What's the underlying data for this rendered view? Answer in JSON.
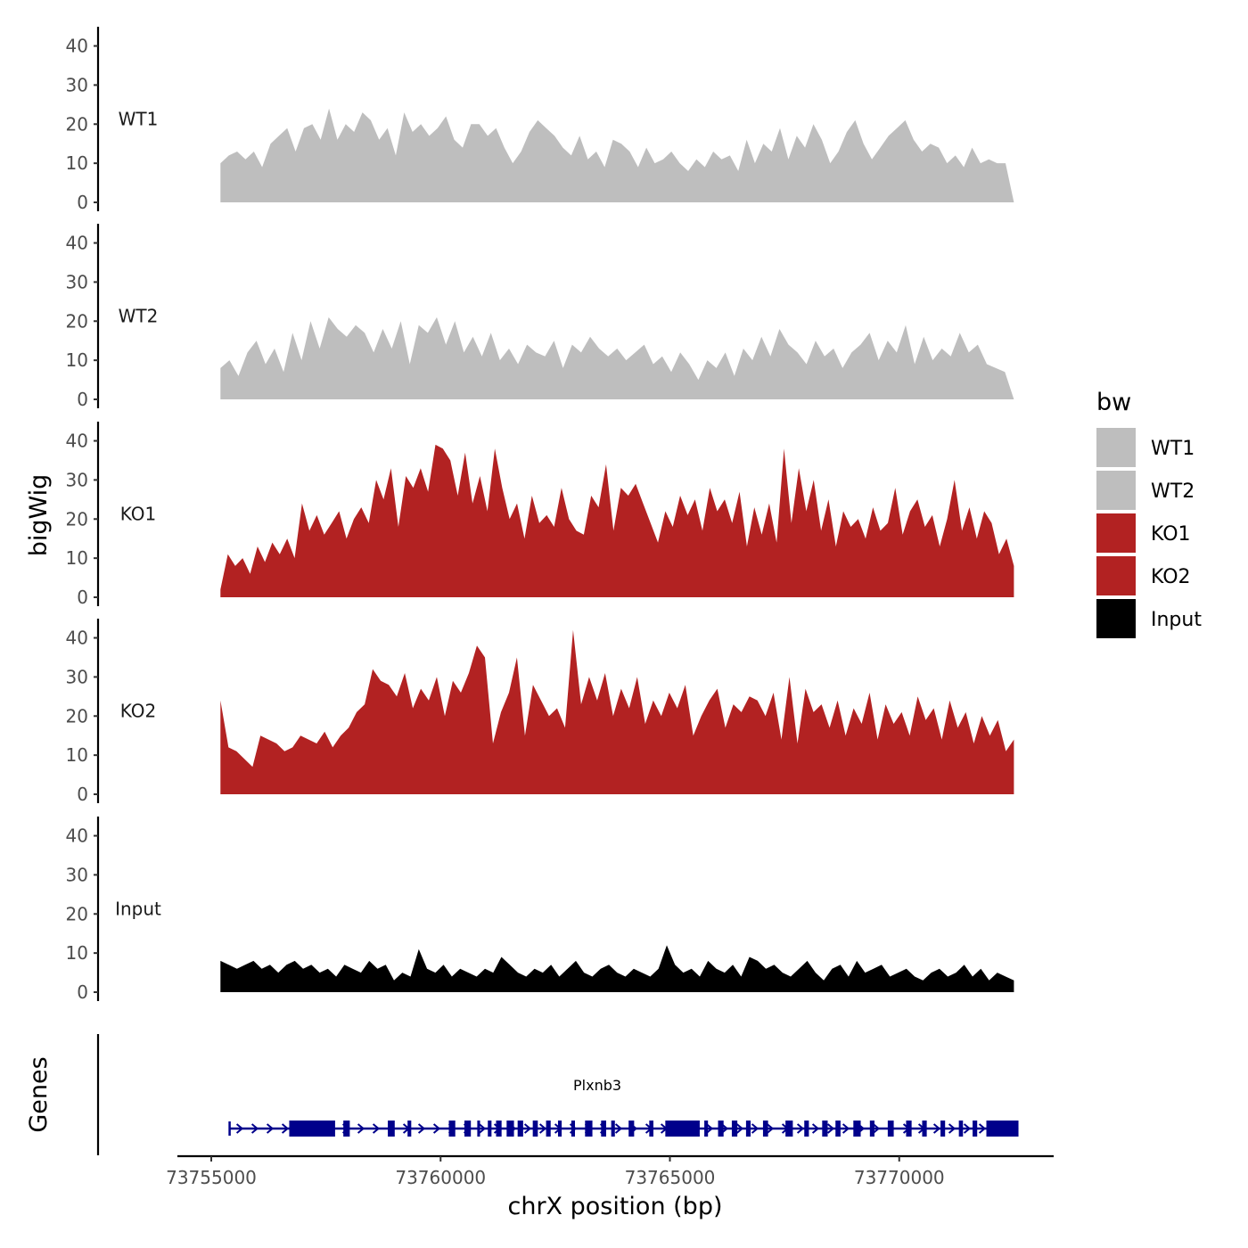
{
  "chart_data": {
    "type": "area",
    "region": "chrX",
    "xlabel": "chrX position (bp)",
    "ylabel": "bigWig",
    "genes_label": "Genes",
    "xlim": [
      73754000,
      73774000
    ],
    "x_ticks": [
      73755000,
      73760000,
      73765000,
      73770000
    ],
    "x_tick_labels": [
      "73755000",
      "73760000",
      "73765000",
      "73770000"
    ],
    "ylim": [
      0,
      44
    ],
    "y_ticks": [
      0,
      10,
      20,
      30,
      40
    ],
    "y_tick_labels": [
      "0",
      "10",
      "20",
      "30",
      "40"
    ],
    "legend": {
      "title": "bw",
      "position": "right",
      "entries": [
        {
          "label": "WT1",
          "color": "#bebebe"
        },
        {
          "label": "WT2",
          "color": "#bebebe"
        },
        {
          "label": "KO1",
          "color": "#b22222"
        },
        {
          "label": "KO2",
          "color": "#b22222"
        },
        {
          "label": "Input",
          "color": "#000000"
        }
      ]
    },
    "series": [
      {
        "name": "WT1",
        "color": "#bebebe",
        "start": 73755200,
        "end": 73772500,
        "values": [
          10,
          12,
          13,
          11,
          13,
          9,
          15,
          17,
          19,
          13,
          19,
          20,
          16,
          24,
          16,
          20,
          18,
          23,
          21,
          16,
          19,
          12,
          23,
          18,
          20,
          17,
          19,
          22,
          16,
          14,
          20,
          20,
          17,
          19,
          14,
          10,
          13,
          18,
          21,
          19,
          17,
          14,
          12,
          17,
          11,
          13,
          9,
          16,
          15,
          13,
          9,
          14,
          10,
          11,
          13,
          10,
          8,
          11,
          9,
          13,
          11,
          12,
          8,
          16,
          10,
          15,
          13,
          19,
          11,
          17,
          14,
          20,
          16,
          10,
          13,
          18,
          21,
          15,
          11,
          14,
          17,
          19,
          21,
          16,
          13,
          15,
          14,
          10,
          12,
          9,
          14,
          10,
          11,
          10,
          10,
          0
        ]
      },
      {
        "name": "WT2",
        "color": "#bebebe",
        "start": 73755200,
        "end": 73772500,
        "values": [
          8,
          10,
          6,
          12,
          15,
          9,
          13,
          7,
          17,
          10,
          20,
          13,
          21,
          18,
          16,
          19,
          17,
          12,
          18,
          13,
          20,
          9,
          19,
          17,
          21,
          14,
          20,
          12,
          16,
          11,
          17,
          10,
          13,
          9,
          14,
          12,
          11,
          15,
          8,
          14,
          12,
          16,
          13,
          11,
          13,
          10,
          12,
          14,
          9,
          11,
          7,
          12,
          9,
          5,
          10,
          8,
          12,
          6,
          13,
          10,
          16,
          11,
          18,
          14,
          12,
          9,
          15,
          11,
          13,
          8,
          12,
          14,
          17,
          10,
          15,
          12,
          19,
          9,
          16,
          10,
          13,
          11,
          17,
          12,
          14,
          9,
          8,
          7,
          0
        ]
      },
      {
        "name": "KO1",
        "color": "#b22222",
        "start": 73755200,
        "end": 73772500,
        "values": [
          2,
          11,
          8,
          10,
          6,
          13,
          9,
          14,
          11,
          15,
          10,
          24,
          17,
          21,
          16,
          19,
          22,
          15,
          20,
          23,
          19,
          30,
          25,
          33,
          18,
          31,
          28,
          33,
          27,
          39,
          38,
          35,
          26,
          37,
          24,
          31,
          22,
          38,
          28,
          20,
          24,
          15,
          26,
          19,
          21,
          18,
          28,
          20,
          17,
          16,
          26,
          23,
          34,
          17,
          28,
          26,
          29,
          24,
          19,
          14,
          22,
          18,
          26,
          21,
          25,
          17,
          28,
          22,
          25,
          19,
          27,
          13,
          23,
          16,
          24,
          14,
          38,
          19,
          33,
          22,
          30,
          17,
          25,
          13,
          22,
          18,
          20,
          15,
          23,
          17,
          19,
          28,
          16,
          22,
          25,
          18,
          21,
          13,
          20,
          30,
          17,
          23,
          15,
          22,
          19,
          11,
          15,
          8
        ]
      },
      {
        "name": "KO2",
        "color": "#b22222",
        "start": 73755200,
        "end": 73772500,
        "values": [
          24,
          12,
          11,
          9,
          7,
          15,
          14,
          13,
          11,
          12,
          15,
          14,
          13,
          16,
          12,
          15,
          17,
          21,
          23,
          32,
          29,
          28,
          25,
          31,
          22,
          27,
          24,
          30,
          20,
          29,
          26,
          31,
          38,
          35,
          13,
          21,
          26,
          35,
          15,
          28,
          24,
          20,
          22,
          17,
          42,
          23,
          30,
          24,
          31,
          20,
          27,
          22,
          30,
          18,
          24,
          20,
          26,
          22,
          28,
          15,
          20,
          24,
          27,
          17,
          23,
          21,
          25,
          24,
          20,
          26,
          14,
          30,
          13,
          27,
          21,
          23,
          17,
          24,
          15,
          22,
          18,
          26,
          14,
          23,
          18,
          21,
          15,
          25,
          19,
          22,
          14,
          24,
          17,
          21,
          13,
          20,
          15,
          19,
          11,
          14
        ]
      },
      {
        "name": "Input",
        "color": "#000000",
        "start": 73755200,
        "end": 73772500,
        "values": [
          8,
          7,
          6,
          7,
          8,
          6,
          7,
          5,
          7,
          8,
          6,
          7,
          5,
          6,
          4,
          7,
          6,
          5,
          8,
          6,
          7,
          3,
          5,
          4,
          11,
          6,
          5,
          7,
          4,
          6,
          5,
          4,
          6,
          5,
          9,
          7,
          5,
          4,
          6,
          5,
          7,
          4,
          6,
          8,
          5,
          4,
          6,
          7,
          5,
          4,
          6,
          5,
          4,
          6,
          12,
          7,
          5,
          6,
          4,
          8,
          6,
          5,
          7,
          4,
          9,
          8,
          6,
          7,
          5,
          4,
          6,
          8,
          5,
          3,
          6,
          7,
          4,
          8,
          5,
          6,
          7,
          4,
          5,
          6,
          4,
          3,
          5,
          6,
          4,
          5,
          7,
          4,
          6,
          3,
          5,
          4,
          3
        ]
      }
    ],
    "genes": [
      {
        "name": "Plxnb3",
        "start": 73755400,
        "end": 73772600,
        "strand": "+",
        "exons": [
          [
            73756700,
            73757700
          ],
          [
            73757880,
            73758020
          ],
          [
            73758850,
            73759000
          ],
          [
            73759280,
            73759360
          ],
          [
            73760180,
            73760320
          ],
          [
            73760520,
            73760660
          ],
          [
            73760800,
            73760860
          ],
          [
            73761030,
            73761110
          ],
          [
            73761210,
            73761330
          ],
          [
            73761440,
            73761600
          ],
          [
            73761680,
            73761800
          ],
          [
            73762010,
            73762120
          ],
          [
            73762300,
            73762400
          ],
          [
            73762560,
            73762640
          ],
          [
            73762850,
            73762930
          ],
          [
            73763150,
            73763310
          ],
          [
            73763500,
            73763610
          ],
          [
            73763720,
            73763800
          ],
          [
            73764100,
            73764220
          ],
          [
            73764550,
            73764640
          ],
          [
            73764900,
            73765650
          ],
          [
            73765750,
            73765830
          ],
          [
            73766050,
            73766170
          ],
          [
            73766350,
            73766470
          ],
          [
            73766660,
            73766760
          ],
          [
            73767030,
            73767140
          ],
          [
            73767520,
            73767680
          ],
          [
            73767930,
            73768030
          ],
          [
            73768320,
            73768440
          ],
          [
            73768610,
            73768720
          ],
          [
            73769000,
            73769160
          ],
          [
            73769360,
            73769460
          ],
          [
            73769750,
            73769880
          ],
          [
            73770150,
            73770270
          ],
          [
            73770500,
            73770600
          ],
          [
            73770900,
            73771000
          ],
          [
            73771300,
            73771390
          ],
          [
            73771600,
            73771700
          ],
          [
            73771900,
            73772600
          ]
        ]
      }
    ]
  }
}
